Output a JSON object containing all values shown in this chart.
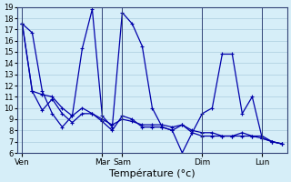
{
  "title": "",
  "xlabel": "Température (°c)",
  "ylabel": "",
  "background_color": "#d6eef8",
  "grid_color": "#aaccdd",
  "line_color": "#0000aa",
  "ylim": [
    6,
    19
  ],
  "yticks": [
    6,
    7,
    8,
    9,
    10,
    11,
    12,
    13,
    14,
    15,
    16,
    17,
    18,
    19
  ],
  "day_labels": [
    "Ven",
    "Mar",
    "Sam",
    "Dim",
    "Lun"
  ],
  "day_positions": [
    0,
    8,
    10,
    18,
    24
  ],
  "series": [
    [
      17.5,
      16.7,
      11.5,
      9.5,
      8.3,
      9.3,
      15.3,
      18.8,
      9.3,
      8.3,
      18.5,
      17.5,
      15.5,
      10.0,
      8.3,
      8.0,
      6.0,
      7.8,
      9.5,
      10.0,
      14.8,
      14.8,
      9.5,
      11.0,
      7.3,
      7.0,
      6.8
    ],
    [
      17.5,
      11.5,
      9.8,
      10.8,
      9.5,
      8.7,
      9.5,
      9.5,
      8.8,
      8.0,
      9.3,
      9.0,
      8.3,
      8.3,
      8.3,
      8.0,
      8.5,
      7.8,
      7.5,
      7.5,
      7.5,
      7.5,
      7.8,
      7.5,
      7.5,
      7.0,
      6.8
    ],
    [
      17.5,
      11.5,
      11.2,
      11.0,
      10.0,
      9.3,
      10.0,
      9.5,
      9.0,
      8.5,
      9.0,
      8.8,
      8.5,
      8.5,
      8.5,
      8.3,
      8.5,
      8.0,
      7.8,
      7.8,
      7.5,
      7.5,
      7.5,
      7.5,
      7.3,
      7.0,
      6.8
    ]
  ],
  "n_points": 27,
  "marker": "+"
}
